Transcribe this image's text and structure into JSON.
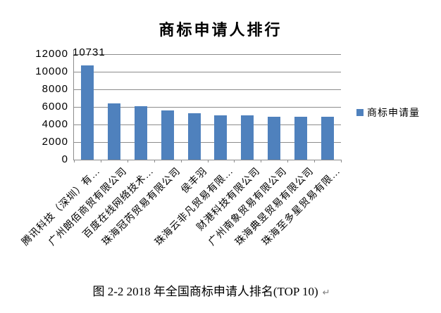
{
  "chart_data": {
    "type": "bar",
    "title": "商标申请人排行",
    "series_name": "商标申请量",
    "categories": [
      "腾讯科技（深圳）有…",
      "广州朗佰商贸有限公司",
      "百度在线网络技术…",
      "珠海冠芮贸易有限公司",
      "侯丰羽",
      "珠海云非凡贸易有限…",
      "财港科技有限公司",
      "广州南象贸易有限公司",
      "珠海典昱贸易有限公司",
      "珠海至多星贸易有限…"
    ],
    "values": [
      10731,
      6400,
      6050,
      5600,
      5300,
      5000,
      5000,
      4900,
      4900,
      4900
    ],
    "data_labels": [
      {
        "bar_index": 0,
        "text": "10731"
      }
    ],
    "xlabel": "",
    "ylabel": "",
    "ylim": [
      0,
      12000
    ],
    "yticks": [
      0,
      2000,
      4000,
      6000,
      8000,
      10000,
      12000
    ],
    "grid": true,
    "legend_position": "right"
  },
  "chart_style": {
    "bar_color": "#4f81bd",
    "gridline_color": "#8c8c8c",
    "axis_color": "#8c8c8c",
    "text_color": "#000000"
  },
  "caption": {
    "text": "图 2-2 2018 年全国商标申请人排名(TOP 10)",
    "return_mark": "↵"
  }
}
